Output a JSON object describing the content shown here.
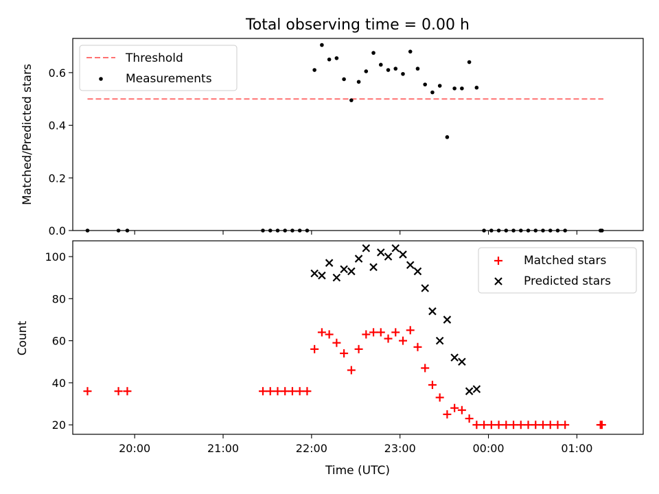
{
  "title": "Total observing time = 0.00 h",
  "chart_data": [
    {
      "type": "scatter",
      "ylabel": "Matched/Predicted stars",
      "xlim": [
        "19:18",
        "01:45"
      ],
      "ylim": [
        0,
        0.73
      ],
      "yticks": [
        "0.0",
        "0.2",
        "0.4",
        "0.6"
      ],
      "yticks_values": [
        0.0,
        0.2,
        0.4,
        0.6
      ],
      "xticks_values": [
        "20:00",
        "21:00",
        "22:00",
        "23:00",
        "00:00",
        "01:00"
      ],
      "legend_position": "upper left",
      "threshold": {
        "name": "Threshold",
        "value": 0.5,
        "x_start": "19:28",
        "x_end": "01:18",
        "color": "#ff7070",
        "style": "dashed"
      },
      "series": [
        {
          "name": "Measurements",
          "marker": "dot",
          "color": "#000000",
          "x": [
            "19:28",
            "19:49",
            "19:55",
            "21:27",
            "21:32",
            "21:37",
            "21:42",
            "21:47",
            "21:52",
            "21:57",
            "22:02",
            "22:07",
            "22:12",
            "22:17",
            "22:22",
            "22:27",
            "22:32",
            "22:37",
            "22:42",
            "22:47",
            "22:52",
            "22:57",
            "23:02",
            "23:07",
            "23:12",
            "23:17",
            "23:22",
            "23:27",
            "23:32",
            "23:37",
            "23:42",
            "23:47",
            "23:52",
            "23:57",
            "00:02",
            "00:07",
            "00:12",
            "00:17",
            "00:22",
            "00:27",
            "00:32",
            "00:37",
            "00:42",
            "00:47",
            "00:52",
            "01:16",
            "01:17"
          ],
          "y": [
            0,
            0,
            0,
            0,
            0,
            0,
            0,
            0,
            0,
            0,
            0.61,
            0.705,
            0.65,
            0.655,
            0.575,
            0.495,
            0.565,
            0.605,
            0.675,
            0.63,
            0.61,
            0.615,
            0.595,
            0.68,
            0.615,
            0.555,
            0.525,
            0.55,
            0.355,
            0.54,
            0.54,
            0.64,
            0.543,
            0,
            0,
            0,
            0,
            0,
            0,
            0,
            0,
            0,
            0,
            0,
            0,
            0,
            0
          ]
        }
      ]
    },
    {
      "type": "scatter",
      "xlabel": "Time (UTC)",
      "ylabel": "Count",
      "xlim": [
        "19:18",
        "01:45"
      ],
      "ylim": [
        15.5,
        107.5
      ],
      "yticks": [
        "20",
        "40",
        "60",
        "80",
        "100"
      ],
      "yticks_values": [
        20,
        40,
        60,
        80,
        100
      ],
      "xticks": [
        "20:00",
        "21:00",
        "22:00",
        "23:00",
        "00:00",
        "01:00"
      ],
      "legend_position": "upper right",
      "series": [
        {
          "name": "Matched stars",
          "marker": "plus",
          "color": "#ff0000",
          "x": [
            "19:28",
            "19:49",
            "19:55",
            "21:27",
            "21:32",
            "21:37",
            "21:42",
            "21:47",
            "21:52",
            "21:57",
            "22:02",
            "22:07",
            "22:12",
            "22:17",
            "22:22",
            "22:27",
            "22:32",
            "22:37",
            "22:42",
            "22:47",
            "22:52",
            "22:57",
            "23:02",
            "23:07",
            "23:12",
            "23:17",
            "23:22",
            "23:27",
            "23:32",
            "23:37",
            "23:42",
            "23:47",
            "23:52",
            "23:57",
            "00:02",
            "00:07",
            "00:12",
            "00:17",
            "00:22",
            "00:27",
            "00:32",
            "00:37",
            "00:42",
            "00:47",
            "00:52",
            "01:16",
            "01:17"
          ],
          "y": [
            36,
            36,
            36,
            36,
            36,
            36,
            36,
            36,
            36,
            36,
            56,
            64,
            63,
            59,
            54,
            46,
            56,
            63,
            64,
            64,
            61,
            64,
            60,
            65,
            57,
            47,
            39,
            33,
            25,
            28,
            27,
            23,
            20,
            20,
            20,
            20,
            20,
            20,
            20,
            20,
            20,
            20,
            20,
            20,
            20,
            20,
            20
          ]
        },
        {
          "name": "Predicted stars",
          "marker": "x",
          "color": "#000000",
          "x": [
            "22:02",
            "22:07",
            "22:12",
            "22:17",
            "22:22",
            "22:27",
            "22:32",
            "22:37",
            "22:42",
            "22:47",
            "22:52",
            "22:57",
            "23:02",
            "23:07",
            "23:12",
            "23:17",
            "23:22",
            "23:27",
            "23:32",
            "23:37",
            "23:42",
            "23:47",
            "23:52"
          ],
          "y": [
            92,
            91,
            97,
            90,
            94,
            93,
            99,
            104,
            95,
            102,
            100,
            104,
            101,
            96,
            93,
            85,
            74,
            60,
            70,
            52,
            50,
            36,
            37
          ]
        }
      ]
    }
  ]
}
